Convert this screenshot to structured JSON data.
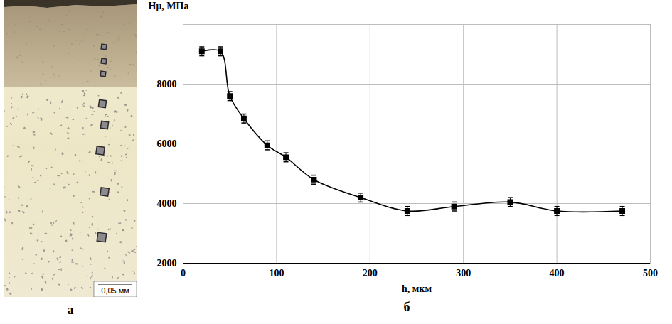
{
  "image_panel": {
    "label": "а",
    "scale_bar": "0,05 мм"
  },
  "chart_data": {
    "type": "line",
    "panel_label": "б",
    "x_label": "h, мкм",
    "y_label": "Hμ, МПа",
    "x": [
      20,
      40,
      50,
      65,
      90,
      110,
      140,
      190,
      240,
      290,
      350,
      400,
      470
    ],
    "values": [
      9100,
      9100,
      7600,
      6850,
      5950,
      5550,
      4800,
      4200,
      3750,
      3900,
      4050,
      3750,
      3750
    ],
    "errors": [
      150,
      150,
      150,
      150,
      150,
      150,
      150,
      150,
      150,
      150,
      150,
      150,
      150
    ],
    "xlim": [
      0,
      500
    ],
    "xticks": [
      0,
      100,
      200,
      300,
      400,
      500
    ],
    "ylim": [
      2000,
      10000
    ],
    "yticks": [
      2000,
      4000,
      6000,
      8000
    ],
    "grid": true,
    "color": "#000000",
    "marker": "square",
    "line_style": "solid"
  }
}
